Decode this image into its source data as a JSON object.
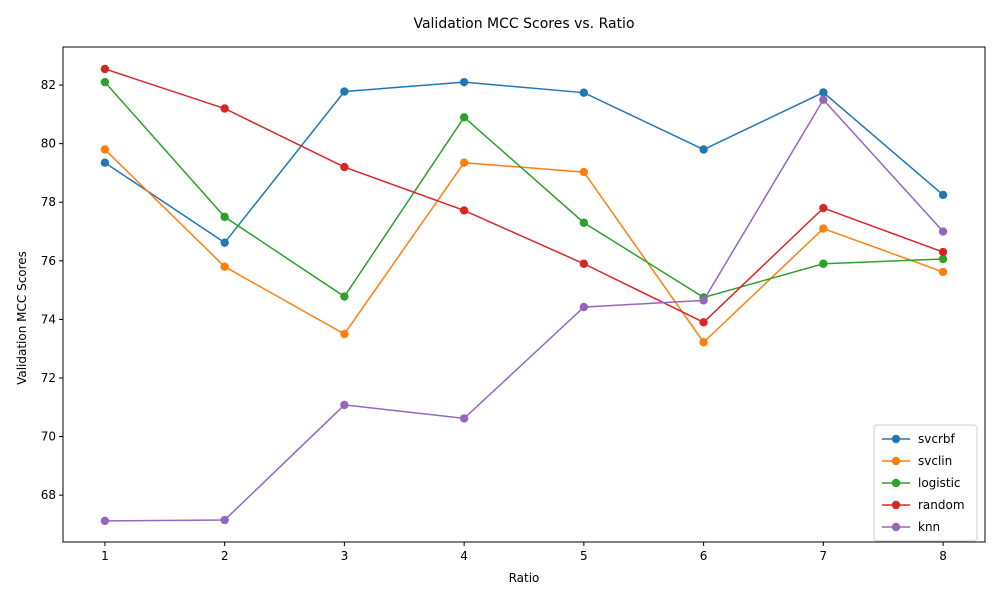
{
  "chart_data": {
    "type": "line",
    "title": "Validation MCC Scores vs. Ratio",
    "xlabel": "Ratio",
    "ylabel": "Validation MCC Scores",
    "x": [
      1,
      2,
      3,
      4,
      5,
      6,
      7,
      8
    ],
    "xlim": [
      0.65,
      8.35
    ],
    "ylim": [
      66.4,
      83.3
    ],
    "xticks": [
      1,
      2,
      3,
      4,
      5,
      6,
      7,
      8
    ],
    "yticks": [
      68,
      70,
      72,
      74,
      76,
      78,
      80,
      82
    ],
    "grid": false,
    "legend_position": "lower right",
    "series": [
      {
        "name": "svcrbf",
        "color": "#1f77b4",
        "values": [
          79.35,
          76.62,
          81.78,
          82.1,
          81.74,
          79.8,
          81.75,
          78.25
        ]
      },
      {
        "name": "svclin",
        "color": "#ff7f0e",
        "values": [
          79.8,
          75.8,
          73.5,
          79.35,
          79.03,
          73.22,
          77.1,
          75.62
        ]
      },
      {
        "name": "logistic",
        "color": "#2ca02c",
        "values": [
          82.1,
          77.5,
          74.78,
          80.9,
          77.3,
          74.75,
          75.9,
          76.06
        ]
      },
      {
        "name": "random",
        "color": "#d62728",
        "values": [
          82.55,
          81.2,
          79.2,
          77.72,
          75.9,
          73.9,
          77.8,
          76.3
        ]
      },
      {
        "name": "knn",
        "color": "#9467bd",
        "values": [
          67.12,
          67.15,
          71.08,
          70.62,
          74.42,
          74.65,
          81.5,
          77.0
        ]
      }
    ]
  }
}
